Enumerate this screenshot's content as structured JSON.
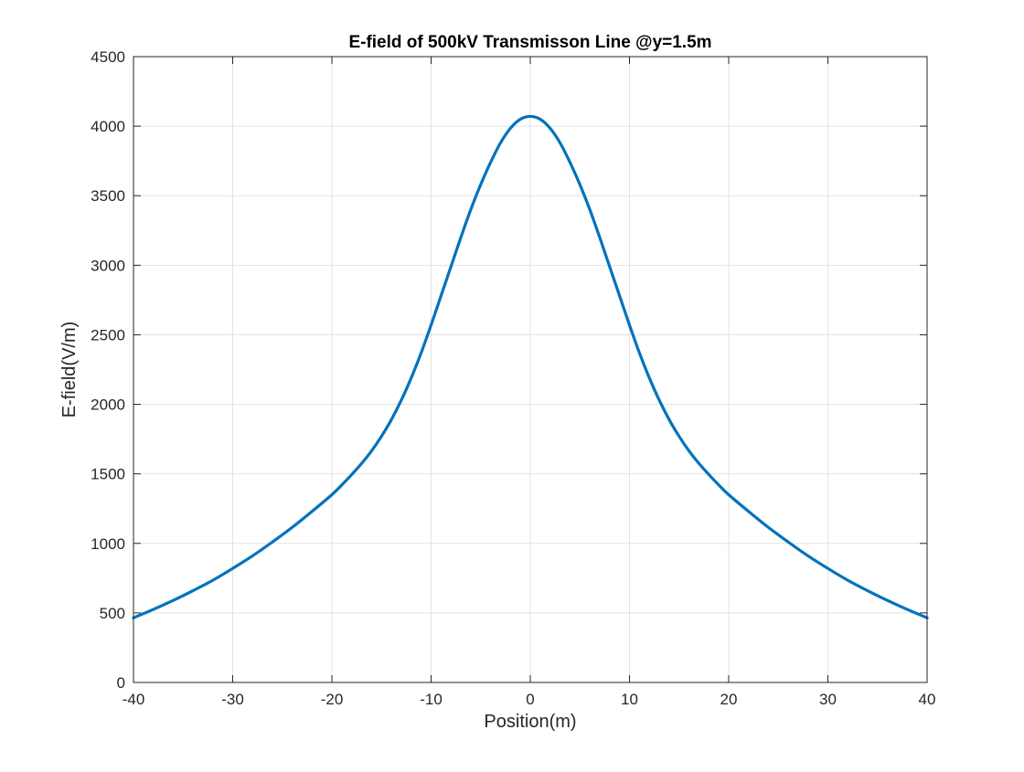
{
  "chart_data": {
    "type": "line",
    "title": "E-field of 500kV Transmisson Line @y=1.5m",
    "xlabel": "Position(m)",
    "ylabel": "E-field(V/m)",
    "xlim": [
      -40,
      40
    ],
    "ylim": [
      0,
      4500
    ],
    "xticks": [
      -40,
      -30,
      -20,
      -10,
      0,
      10,
      20,
      30,
      40
    ],
    "yticks": [
      0,
      500,
      1000,
      1500,
      2000,
      2500,
      3000,
      3500,
      4000,
      4500
    ],
    "grid": true,
    "legend": "none",
    "series": [
      {
        "color": "#0072BD",
        "x": [
          -40,
          -38,
          -36,
          -34,
          -32,
          -30,
          -28,
          -26,
          -24,
          -22,
          -20,
          -19,
          -18,
          -17,
          -16,
          -15,
          -14,
          -13,
          -12,
          -11,
          -10,
          -9,
          -8,
          -7,
          -6,
          -5,
          -4,
          -3,
          -2,
          -1,
          0,
          1,
          2,
          3,
          4,
          5,
          6,
          7,
          8,
          9,
          10,
          11,
          12,
          13,
          14,
          15,
          16,
          17,
          18,
          19,
          20,
          22,
          24,
          26,
          28,
          30,
          32,
          34,
          36,
          38,
          40
        ],
        "y": [
          465,
          525,
          590,
          660,
          735,
          820,
          910,
          1010,
          1115,
          1230,
          1350,
          1420,
          1495,
          1575,
          1665,
          1770,
          1890,
          2030,
          2190,
          2370,
          2570,
          2780,
          2990,
          3200,
          3400,
          3580,
          3740,
          3880,
          3985,
          4050,
          4070,
          4050,
          3985,
          3880,
          3740,
          3580,
          3400,
          3200,
          2990,
          2780,
          2570,
          2370,
          2190,
          2030,
          1890,
          1770,
          1665,
          1575,
          1495,
          1420,
          1350,
          1230,
          1115,
          1010,
          910,
          820,
          735,
          660,
          590,
          525,
          465
        ]
      }
    ]
  }
}
